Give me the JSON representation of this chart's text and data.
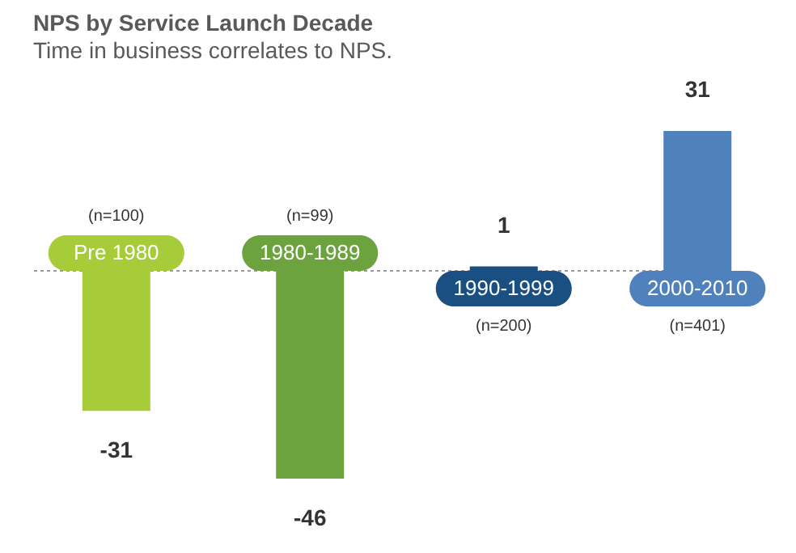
{
  "chart_data": {
    "type": "bar",
    "title": "NPS by Service Launch Decade",
    "subtitle": "Time in business correlates to NPS.",
    "categories": [
      "Pre 1980",
      "1980-1989",
      "1990-1999",
      "2000-2010"
    ],
    "values": [
      -31,
      -46,
      1,
      31
    ],
    "colors": [
      "#a6cc3a",
      "#6ca33f",
      "#1a4f82",
      "#4f81bd"
    ],
    "data_labels": true,
    "ref_lines": [
      {
        "axis": "y",
        "value": 0,
        "color": "#999999",
        "line_style": "dotted"
      }
    ],
    "annotations": [
      "(n=100)",
      "(n=99)",
      "(n=200)",
      "(n=401)"
    ]
  }
}
